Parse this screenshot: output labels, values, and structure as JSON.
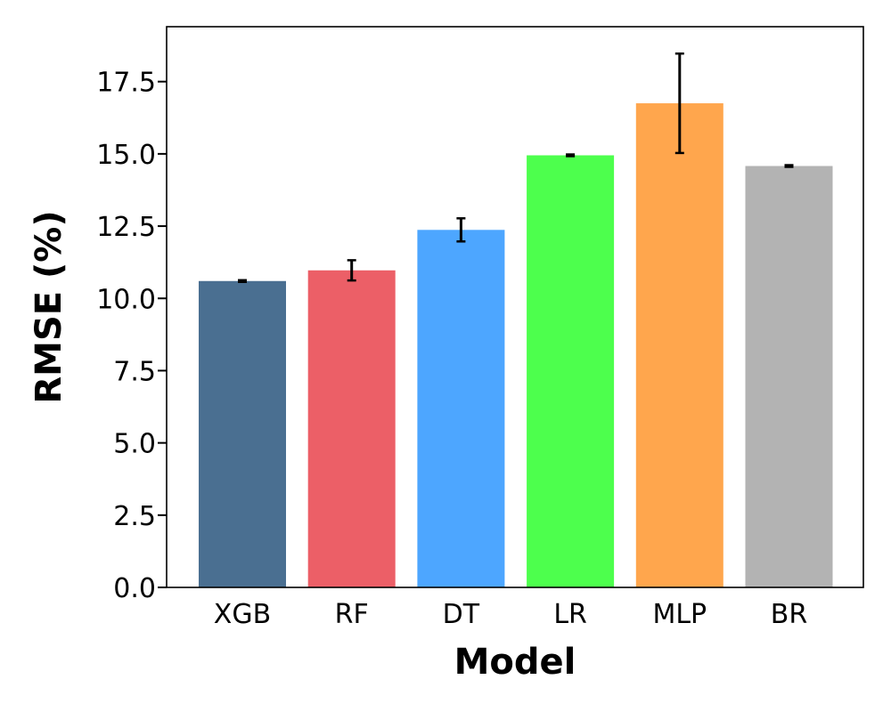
{
  "chart_data": {
    "type": "bar",
    "title": "",
    "xlabel": "Model",
    "ylabel": "RMSE (%)",
    "categories": [
      "XGB",
      "RF",
      "DT",
      "LR",
      "MLP",
      "BR"
    ],
    "values": [
      10.6,
      10.97,
      12.37,
      14.95,
      16.75,
      14.58
    ],
    "errors": [
      0.03,
      0.35,
      0.4,
      0.03,
      1.72,
      0.03
    ],
    "colors": [
      "#4a6f91",
      "#ec5f67",
      "#4da6ff",
      "#4dff4d",
      "#ffa64d",
      "#b3b3b3"
    ],
    "ylim": [
      0,
      19.4
    ],
    "yticks": [
      0.0,
      2.5,
      5.0,
      7.5,
      10.0,
      12.5,
      15.0,
      17.5
    ],
    "ytick_labels": [
      "0.0",
      "2.5",
      "5.0",
      "7.5",
      "10.0",
      "12.5",
      "15.0",
      "17.5"
    ],
    "grid": false,
    "legend": "none"
  }
}
